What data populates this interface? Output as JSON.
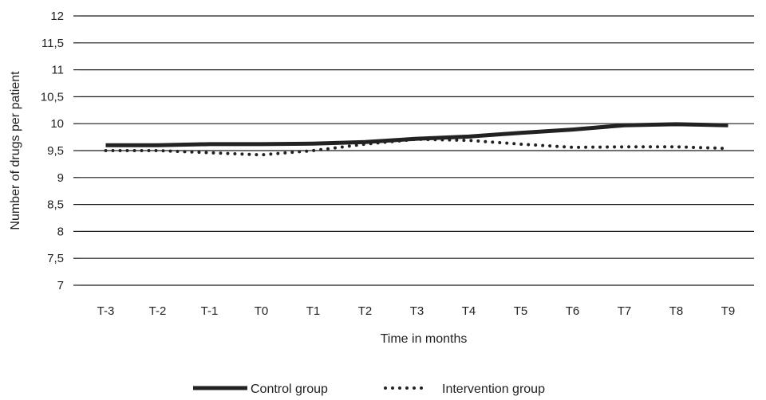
{
  "chart_data": {
    "type": "line",
    "title": "",
    "xlabel": "Time in months",
    "ylabel": "Number of drugs per patient",
    "categories": [
      "T-3",
      "T-2",
      "T-1",
      "T0",
      "T1",
      "T2",
      "T3",
      "T4",
      "T5",
      "T6",
      "T7",
      "T8",
      "T9"
    ],
    "y_ticks": [
      "7",
      "7,5",
      "8",
      "8,5",
      "9",
      "9,5",
      "10",
      "10,5",
      "11",
      "11,5",
      "12"
    ],
    "ylim": [
      7,
      12
    ],
    "grid": "horizontal",
    "legend_position": "bottom",
    "series": [
      {
        "name": "Control group",
        "style": "solid",
        "color": "#222222",
        "values": [
          9.6,
          9.6,
          9.62,
          9.62,
          9.63,
          9.66,
          9.72,
          9.76,
          9.83,
          9.89,
          9.97,
          9.99,
          9.97
        ]
      },
      {
        "name": "Intervention group",
        "style": "dotted",
        "color": "#222222",
        "values": [
          9.5,
          9.5,
          9.46,
          9.42,
          9.5,
          9.62,
          9.71,
          9.69,
          9.62,
          9.56,
          9.57,
          9.57,
          9.54
        ]
      }
    ]
  }
}
